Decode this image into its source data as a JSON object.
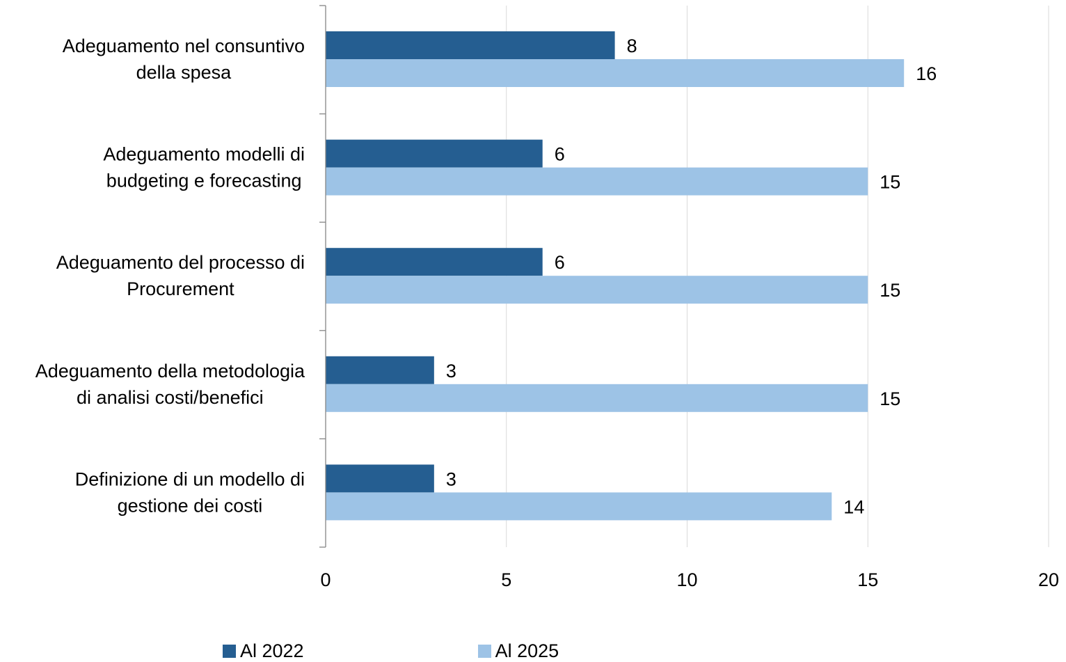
{
  "chart_data": {
    "type": "bar",
    "orientation": "horizontal",
    "categories": [
      [
        "Adeguamento nel consuntivo",
        "della spesa"
      ],
      [
        "Adeguamento modelli di",
        "budgeting e forecasting"
      ],
      [
        "Adeguamento del processo di",
        "Procurement"
      ],
      [
        "Adeguamento della metodologia",
        "di analisi costi/benefici"
      ],
      [
        "Definizione di un modello di",
        "gestione dei costi"
      ]
    ],
    "series": [
      {
        "name": "Al 2022",
        "color": "#255E91",
        "values": [
          8,
          6,
          6,
          3,
          3
        ]
      },
      {
        "name": "Al 2025",
        "color": "#9DC3E6",
        "values": [
          16,
          15,
          15,
          15,
          14
        ]
      }
    ],
    "xlim": [
      0,
      20
    ],
    "xticks": [
      "0",
      "5",
      "10",
      "15",
      "20"
    ],
    "grid": true,
    "data_labels": true,
    "legend_position": "bottom"
  },
  "legend": {
    "items": [
      {
        "label": "Al 2022",
        "color": "#255E91"
      },
      {
        "label": "Al 2025",
        "color": "#9DC3E6"
      }
    ]
  }
}
